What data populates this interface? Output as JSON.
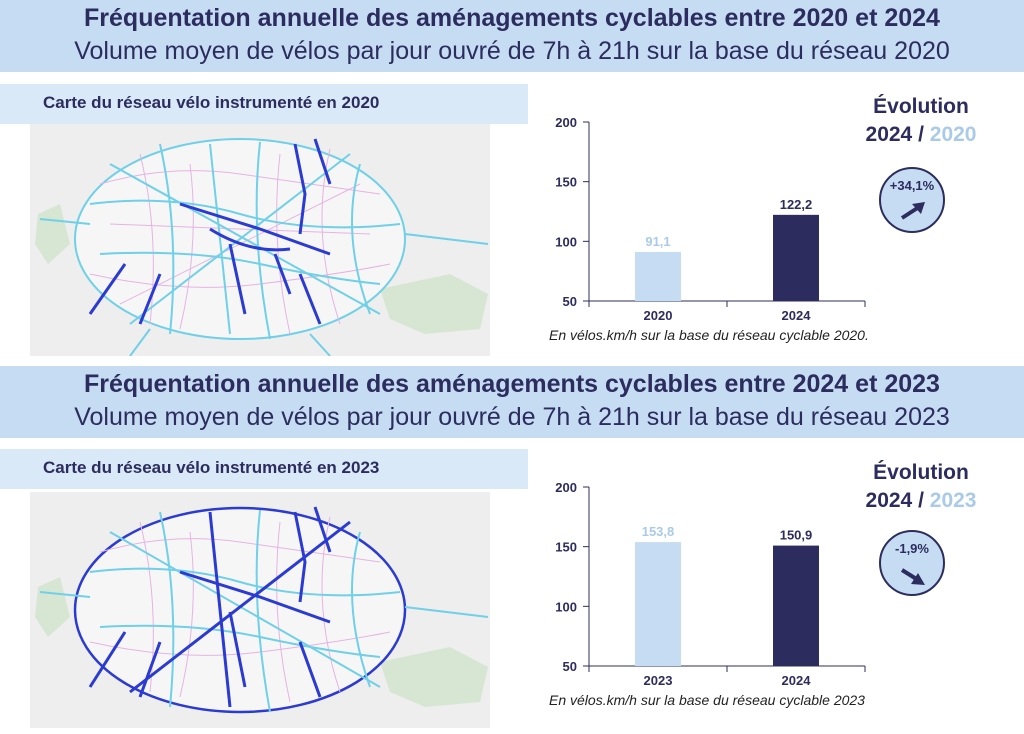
{
  "sections": [
    {
      "title": "Fréquentation annuelle des aménagements cyclables entre 2020 et 2024",
      "subtitle": "Volume moyen de vélos par jour ouvré de 7h à 21h sur la base du réseau 2020",
      "map_label": "Carte du réseau vélo instrumenté en 2020",
      "evolution_title": "Évolution",
      "evolution_current": "2024",
      "evolution_sep": "/",
      "evolution_base": "2020",
      "badge": "+34,1%",
      "trend": "up",
      "note": "En vélos.km/h sur la base du réseau cyclable 2020."
    },
    {
      "title": "Fréquentation annuelle des aménagements cyclables entre 2024 et 2023",
      "subtitle": "Volume moyen de vélos par jour ouvré de 7h à 21h sur la base du réseau 2023",
      "map_label": "Carte du réseau vélo instrumenté en 2023",
      "evolution_title": "Évolution",
      "evolution_current": "2024",
      "evolution_sep": "/",
      "evolution_base": "2023",
      "badge": "-1,9%",
      "trend": "down",
      "note": "En vélos.km/h sur la base du réseau cyclable 2023"
    }
  ],
  "colors": {
    "dark": "#2c2d5e",
    "light": "#c5dcf3",
    "pale_text": "#a9cbe8"
  },
  "chart_data": [
    {
      "type": "bar",
      "categories": [
        "2020",
        "2024"
      ],
      "values": [
        91.1,
        122.2
      ],
      "value_labels": [
        "91,1",
        "122,2"
      ],
      "bar_colors": [
        "#c5dcf3",
        "#2c2d5e"
      ],
      "label_colors": [
        "#a9cbe8",
        "#2c2d5e"
      ],
      "ylim": [
        50,
        200
      ],
      "yticks": [
        50,
        100,
        150,
        200
      ],
      "grid": false
    },
    {
      "type": "bar",
      "categories": [
        "2023",
        "2024"
      ],
      "values": [
        153.8,
        150.9
      ],
      "value_labels": [
        "153,8",
        "150,9"
      ],
      "bar_colors": [
        "#c5dcf3",
        "#2c2d5e"
      ],
      "label_colors": [
        "#a9cbe8",
        "#2c2d5e"
      ],
      "ylim": [
        50,
        200
      ],
      "yticks": [
        50,
        100,
        150,
        200
      ],
      "grid": false
    }
  ]
}
